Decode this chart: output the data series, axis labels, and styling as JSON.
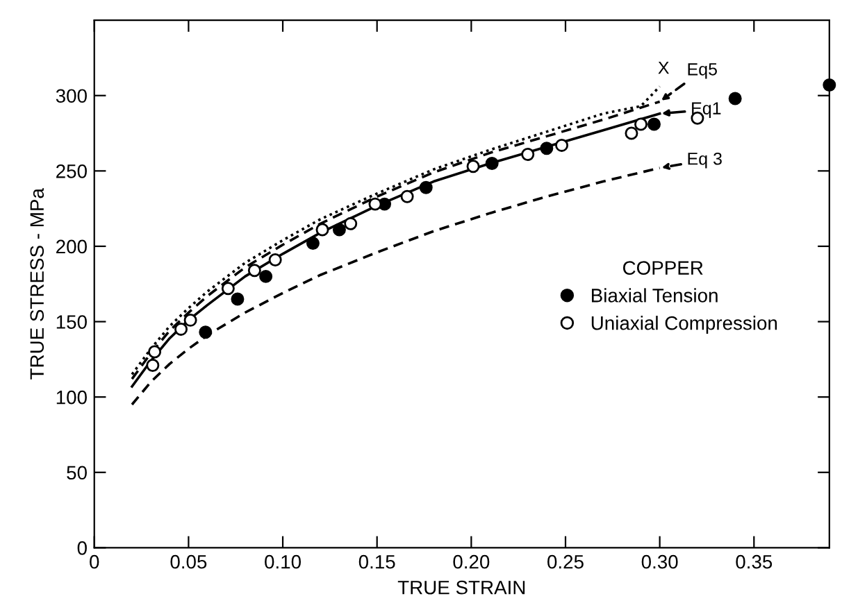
{
  "chart_data": {
    "type": "line",
    "xlabel": "TRUE STRAIN",
    "ylabel": "TRUE STRESS - MPa",
    "legend_title": "COPPER",
    "legend": "right",
    "grid": false,
    "xlim": [
      0,
      0.39
    ],
    "ylim": [
      0,
      350
    ],
    "xticks": [
      0,
      {
        "value": 0.05,
        "label": "0.05"
      },
      {
        "value": 0.1,
        "label": "0.10"
      },
      {
        "value": 0.15,
        "label": "0.15"
      },
      {
        "value": 0.2,
        "label": "0.20"
      },
      {
        "value": 0.25,
        "label": "0.25"
      },
      {
        "value": 0.3,
        "label": "0.30"
      },
      {
        "value": 0.35,
        "label": "0.35"
      }
    ],
    "yticks": [
      0,
      50,
      100,
      150,
      200,
      250,
      300
    ],
    "series": [
      {
        "name": "X",
        "line_style": "dotted",
        "color": "#000000",
        "x": [
          0.02,
          0.03,
          0.04,
          0.05,
          0.06,
          0.08,
          0.1,
          0.12,
          0.15,
          0.18,
          0.21,
          0.24,
          0.27,
          0.29,
          0.3
        ],
        "values": [
          115,
          132,
          147,
          159,
          170,
          189,
          204,
          218,
          235,
          251,
          264,
          276,
          288,
          293,
          306
        ]
      },
      {
        "name": "Eq5",
        "line_style": "dashed",
        "color": "#000000",
        "x": [
          0.02,
          0.03,
          0.04,
          0.05,
          0.06,
          0.08,
          0.1,
          0.12,
          0.15,
          0.18,
          0.21,
          0.24,
          0.27,
          0.3
        ],
        "values": [
          112,
          129,
          144,
          156,
          167,
          186,
          201,
          215,
          233,
          249,
          262,
          273,
          284,
          296
        ]
      },
      {
        "name": "Eq1",
        "line_style": "solid",
        "color": "#000000",
        "x": [
          0.02,
          0.03,
          0.04,
          0.05,
          0.06,
          0.08,
          0.1,
          0.12,
          0.15,
          0.18,
          0.21,
          0.24,
          0.27,
          0.3
        ],
        "values": [
          107,
          124,
          139,
          151,
          161,
          180,
          195,
          209,
          227,
          243,
          255,
          266,
          277,
          288
        ]
      },
      {
        "name": "Eq 3",
        "line_style": "dashed",
        "color": "#000000",
        "x": [
          0.02,
          0.03,
          0.04,
          0.05,
          0.06,
          0.08,
          0.1,
          0.12,
          0.15,
          0.18,
          0.21,
          0.24,
          0.27,
          0.3
        ],
        "values": [
          95,
          110,
          122,
          132,
          141,
          156,
          169,
          181,
          196,
          210,
          222,
          233,
          243,
          252
        ]
      },
      {
        "name": "Biaxial Tension",
        "type": "scatter",
        "marker": "circle",
        "color": "#000000",
        "x": [
          0.059,
          0.076,
          0.091,
          0.116,
          0.13,
          0.154,
          0.176,
          0.211,
          0.24,
          0.297,
          0.34,
          0.39
        ],
        "values": [
          143,
          165,
          180,
          202,
          211,
          228,
          239,
          255,
          265,
          281,
          298,
          307
        ]
      },
      {
        "name": "Uniaxial Compression",
        "type": "scatter",
        "marker": "circle",
        "color": "#ffffff",
        "x": [
          0.031,
          0.032,
          0.046,
          0.051,
          0.071,
          0.085,
          0.096,
          0.121,
          0.136,
          0.149,
          0.166,
          0.201,
          0.23,
          0.248,
          0.285,
          0.29,
          0.32
        ],
        "values": [
          121,
          130,
          145,
          151,
          172,
          184,
          191,
          211,
          215,
          228,
          233,
          253,
          261,
          267,
          275,
          281,
          285
        ]
      }
    ]
  }
}
